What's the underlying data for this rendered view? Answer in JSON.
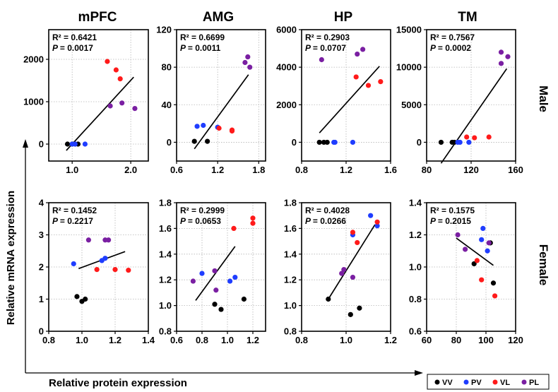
{
  "figure": {
    "column_titles": [
      "mPFC",
      "AMG",
      "HP",
      "TM"
    ],
    "row_labels": [
      "Male",
      "Female"
    ],
    "y_axis_label": "Relative mRNA expression",
    "x_axis_label": "Relative protein expression",
    "legend": [
      {
        "label": "VV",
        "color": "#000000"
      },
      {
        "label": "PV",
        "color": "#1f3dff"
      },
      {
        "label": "VL",
        "color": "#ff1a1a"
      },
      {
        "label": "PL",
        "color": "#7a1fa2"
      }
    ]
  },
  "chart_data": [
    {
      "type": "scatter",
      "region": "mPFC",
      "sex": "Male",
      "r2_label": "R² = 0.6421",
      "p_label": "= 0.0017",
      "xlim": [
        0.6,
        2.3
      ],
      "ylim": [
        -400,
        2700
      ],
      "xticks": [
        1.0,
        2.0
      ],
      "xtick_labels": [
        "1.0",
        "2.0"
      ],
      "yticks": [
        0,
        1000,
        2000
      ],
      "ytick_labels": [
        "0",
        "1000",
        "2000"
      ],
      "fit": [
        [
          0.9,
          -150
        ],
        [
          2.05,
          1580
        ]
      ],
      "points": [
        {
          "group": "VV",
          "x": 0.92,
          "y": 0
        },
        {
          "group": "VV",
          "x": 1.0,
          "y": 0
        },
        {
          "group": "VV",
          "x": 1.05,
          "y": 0
        },
        {
          "group": "VV",
          "x": 1.1,
          "y": 0
        },
        {
          "group": "PV",
          "x": 1.0,
          "y": 0
        },
        {
          "group": "PV",
          "x": 1.05,
          "y": 0
        },
        {
          "group": "PV",
          "x": 1.22,
          "y": 0
        },
        {
          "group": "VL",
          "x": 1.6,
          "y": 1950
        },
        {
          "group": "VL",
          "x": 1.75,
          "y": 1750
        },
        {
          "group": "VL",
          "x": 1.82,
          "y": 1540
        },
        {
          "group": "PL",
          "x": 1.65,
          "y": 900
        },
        {
          "group": "PL",
          "x": 1.85,
          "y": 970
        },
        {
          "group": "PL",
          "x": 2.07,
          "y": 840
        }
      ]
    },
    {
      "type": "scatter",
      "region": "AMG",
      "sex": "Male",
      "r2_label": "R² = 0.6699",
      "p_label": "= 0.0011",
      "xlim": [
        0.6,
        1.9
      ],
      "ylim": [
        -20,
        120
      ],
      "xticks": [
        0.6,
        1.2,
        1.8
      ],
      "xtick_labels": [
        "0.6",
        "1.2",
        "1.8"
      ],
      "yticks": [
        0,
        40,
        80,
        120
      ],
      "ytick_labels": [
        "0",
        "40",
        "80",
        "120"
      ],
      "fit": [
        [
          0.86,
          -7
        ],
        [
          1.65,
          72
        ]
      ],
      "points": [
        {
          "group": "VV",
          "x": 0.86,
          "y": 1
        },
        {
          "group": "VV",
          "x": 1.05,
          "y": 1
        },
        {
          "group": "PV",
          "x": 0.9,
          "y": 17
        },
        {
          "group": "PV",
          "x": 0.99,
          "y": 18
        },
        {
          "group": "PV",
          "x": 1.2,
          "y": 16
        },
        {
          "group": "VL",
          "x": 1.22,
          "y": 15
        },
        {
          "group": "VL",
          "x": 1.41,
          "y": 13
        },
        {
          "group": "VL",
          "x": 1.41,
          "y": 12
        },
        {
          "group": "PL",
          "x": 1.6,
          "y": 85
        },
        {
          "group": "PL",
          "x": 1.64,
          "y": 91
        },
        {
          "group": "PL",
          "x": 1.67,
          "y": 80
        }
      ]
    },
    {
      "type": "scatter",
      "region": "HP",
      "sex": "Male",
      "r2_label": "R² = 0.2903",
      "p_label": "= 0.0707",
      "xlim": [
        0.8,
        1.6
      ],
      "ylim": [
        -1000,
        6000
      ],
      "xticks": [
        0.8,
        1.2,
        1.6
      ],
      "xtick_labels": [
        "0.8",
        "1.2",
        "1.6"
      ],
      "yticks": [
        0,
        2000,
        4000,
        6000
      ],
      "ytick_labels": [
        "0",
        "2000",
        "4000",
        "6000"
      ],
      "fit": [
        [
          0.96,
          500
        ],
        [
          1.5,
          4050
        ]
      ],
      "points": [
        {
          "group": "VV",
          "x": 0.96,
          "y": 0
        },
        {
          "group": "VV",
          "x": 1.0,
          "y": 0
        },
        {
          "group": "VV",
          "x": 1.03,
          "y": 0
        },
        {
          "group": "PV",
          "x": 1.09,
          "y": 0
        },
        {
          "group": "PV",
          "x": 1.1,
          "y": 0
        },
        {
          "group": "PV",
          "x": 1.26,
          "y": 0
        },
        {
          "group": "VL",
          "x": 1.29,
          "y": 3480
        },
        {
          "group": "VL",
          "x": 1.4,
          "y": 3030
        },
        {
          "group": "VL",
          "x": 1.51,
          "y": 3230
        },
        {
          "group": "PL",
          "x": 0.98,
          "y": 4400
        },
        {
          "group": "PL",
          "x": 1.3,
          "y": 4700
        },
        {
          "group": "PL",
          "x": 1.35,
          "y": 4950
        }
      ]
    },
    {
      "type": "scatter",
      "region": "TM",
      "sex": "Male",
      "r2_label": "R² = 0.7567",
      "p_label": "= 0.0002",
      "xlim": [
        80,
        160
      ],
      "ylim": [
        -2500,
        15000
      ],
      "xticks": [
        80,
        120,
        160
      ],
      "xtick_labels": [
        "80",
        "120",
        "160"
      ],
      "yticks": [
        0,
        5000,
        10000,
        15000
      ],
      "ytick_labels": [
        "0",
        "5000",
        "10000",
        "15000"
      ],
      "fit": [
        [
          93,
          -2800
        ],
        [
          152,
          9800
        ]
      ],
      "points": [
        {
          "group": "VV",
          "x": 93,
          "y": 0
        },
        {
          "group": "VV",
          "x": 103,
          "y": 0
        },
        {
          "group": "VV",
          "x": 105,
          "y": 0
        },
        {
          "group": "PV",
          "x": 108,
          "y": 0
        },
        {
          "group": "PV",
          "x": 110,
          "y": 0
        },
        {
          "group": "PV",
          "x": 118,
          "y": 0
        },
        {
          "group": "VL",
          "x": 116,
          "y": 700
        },
        {
          "group": "VL",
          "x": 123,
          "y": 600
        },
        {
          "group": "VL",
          "x": 136,
          "y": 700
        },
        {
          "group": "PL",
          "x": 147,
          "y": 12000
        },
        {
          "group": "PL",
          "x": 147,
          "y": 10500
        },
        {
          "group": "PL",
          "x": 153,
          "y": 11400
        }
      ]
    },
    {
      "type": "scatter",
      "region": "mPFC",
      "sex": "Female",
      "r2_label": "R² = 0.1452",
      "p_label": "= 0.2217",
      "xlim": [
        0.8,
        1.4
      ],
      "ylim": [
        0,
        4
      ],
      "xticks": [
        0.8,
        1.0,
        1.2,
        1.4
      ],
      "xtick_labels": [
        "0.8",
        "1.0",
        "1.2",
        "1.4"
      ],
      "yticks": [
        0,
        1,
        2,
        3,
        4
      ],
      "ytick_labels": [
        "0",
        "1",
        "2",
        "3",
        "4"
      ],
      "fit": [
        [
          0.98,
          1.95
        ],
        [
          1.26,
          2.48
        ]
      ],
      "points": [
        {
          "group": "VV",
          "x": 0.97,
          "y": 1.08
        },
        {
          "group": "VV",
          "x": 1.0,
          "y": 0.93
        },
        {
          "group": "VV",
          "x": 1.02,
          "y": 1.0
        },
        {
          "group": "PV",
          "x": 0.95,
          "y": 2.1
        },
        {
          "group": "PV",
          "x": 1.12,
          "y": 2.2
        },
        {
          "group": "PV",
          "x": 1.14,
          "y": 2.27
        },
        {
          "group": "VL",
          "x": 1.09,
          "y": 1.92
        },
        {
          "group": "VL",
          "x": 1.2,
          "y": 1.92
        },
        {
          "group": "VL",
          "x": 1.28,
          "y": 1.9
        },
        {
          "group": "PL",
          "x": 1.04,
          "y": 2.84
        },
        {
          "group": "PL",
          "x": 1.14,
          "y": 2.84
        },
        {
          "group": "PL",
          "x": 1.16,
          "y": 2.84
        }
      ]
    },
    {
      "type": "scatter",
      "region": "AMG",
      "sex": "Female",
      "r2_label": "R² = 0.2999",
      "p_label": "= 0.0653",
      "xlim": [
        0.6,
        1.3
      ],
      "ylim": [
        0.8,
        1.8
      ],
      "xticks": [
        0.6,
        0.8,
        1.0,
        1.2
      ],
      "xtick_labels": [
        "0.6",
        "0.8",
        "1.0",
        "1.2"
      ],
      "yticks": [
        0.8,
        1.0,
        1.2,
        1.4,
        1.6,
        1.8
      ],
      "ytick_labels": [
        "0.8",
        "1.0",
        "1.2",
        "1.4",
        "1.6",
        "1.8"
      ],
      "fit": [
        [
          0.75,
          1.04
        ],
        [
          1.06,
          1.46
        ]
      ],
      "points": [
        {
          "group": "VV",
          "x": 0.9,
          "y": 1.01
        },
        {
          "group": "VV",
          "x": 0.95,
          "y": 0.97
        },
        {
          "group": "VV",
          "x": 1.13,
          "y": 1.05
        },
        {
          "group": "PV",
          "x": 0.8,
          "y": 1.25
        },
        {
          "group": "PV",
          "x": 1.02,
          "y": 1.19
        },
        {
          "group": "PV",
          "x": 1.06,
          "y": 1.22
        },
        {
          "group": "VL",
          "x": 1.05,
          "y": 1.6
        },
        {
          "group": "VL",
          "x": 1.2,
          "y": 1.68
        },
        {
          "group": "VL",
          "x": 1.2,
          "y": 1.64
        },
        {
          "group": "PL",
          "x": 0.73,
          "y": 1.19
        },
        {
          "group": "PL",
          "x": 0.9,
          "y": 1.27
        },
        {
          "group": "PL",
          "x": 0.91,
          "y": 1.12
        }
      ]
    },
    {
      "type": "scatter",
      "region": "HP",
      "sex": "Female",
      "r2_label": "R² = 0.4028",
      "p_label": "= 0.0266",
      "xlim": [
        0.8,
        1.2
      ],
      "ylim": [
        0.8,
        1.8
      ],
      "xticks": [
        0.8,
        1.0,
        1.2
      ],
      "xtick_labels": [
        "0.8",
        "1.0",
        "1.2"
      ],
      "yticks": [
        0.8,
        1.0,
        1.2,
        1.4,
        1.6,
        1.8
      ],
      "ytick_labels": [
        "0.8",
        "1.0",
        "1.2",
        "1.4",
        "1.6",
        "1.8"
      ],
      "fit": [
        [
          0.92,
          1.05
        ],
        [
          1.13,
          1.63
        ]
      ],
      "points": [
        {
          "group": "VV",
          "x": 0.92,
          "y": 1.05
        },
        {
          "group": "VV",
          "x": 1.02,
          "y": 0.93
        },
        {
          "group": "VV",
          "x": 1.06,
          "y": 0.98
        },
        {
          "group": "PV",
          "x": 1.03,
          "y": 1.55
        },
        {
          "group": "PV",
          "x": 1.11,
          "y": 1.7
        },
        {
          "group": "PV",
          "x": 1.14,
          "y": 1.62
        },
        {
          "group": "VL",
          "x": 1.03,
          "y": 1.57
        },
        {
          "group": "VL",
          "x": 1.05,
          "y": 1.49
        },
        {
          "group": "VL",
          "x": 1.14,
          "y": 1.65
        },
        {
          "group": "PL",
          "x": 0.98,
          "y": 1.25
        },
        {
          "group": "PL",
          "x": 0.99,
          "y": 1.28
        },
        {
          "group": "PL",
          "x": 1.03,
          "y": 1.22
        }
      ]
    },
    {
      "type": "scatter",
      "region": "TM",
      "sex": "Female",
      "r2_label": "R² = 0.1575",
      "p_label": "= 0.2015",
      "xlim": [
        60,
        120
      ],
      "ylim": [
        0.6,
        1.4
      ],
      "xticks": [
        60,
        80,
        100,
        120
      ],
      "xtick_labels": [
        "60",
        "80",
        "100",
        "120"
      ],
      "yticks": [
        0.6,
        0.8,
        1.0,
        1.2,
        1.4
      ],
      "ytick_labels": [
        "0.6",
        "0.8",
        "1.0",
        "1.2",
        "1.4"
      ],
      "fit": [
        [
          80,
          1.18
        ],
        [
          105,
          1.01
        ]
      ],
      "points": [
        {
          "group": "VV",
          "x": 92,
          "y": 1.02
        },
        {
          "group": "VV",
          "x": 103,
          "y": 1.15
        },
        {
          "group": "VV",
          "x": 105,
          "y": 0.9
        },
        {
          "group": "PV",
          "x": 97,
          "y": 1.17
        },
        {
          "group": "PV",
          "x": 98,
          "y": 1.24
        },
        {
          "group": "PV",
          "x": 101,
          "y": 1.1
        },
        {
          "group": "VL",
          "x": 94,
          "y": 1.04
        },
        {
          "group": "VL",
          "x": 97,
          "y": 0.92
        },
        {
          "group": "VL",
          "x": 106,
          "y": 0.82
        },
        {
          "group": "PL",
          "x": 81,
          "y": 1.2
        },
        {
          "group": "PL",
          "x": 86,
          "y": 1.11
        },
        {
          "group": "PL",
          "x": 102,
          "y": 1.15
        }
      ]
    }
  ]
}
